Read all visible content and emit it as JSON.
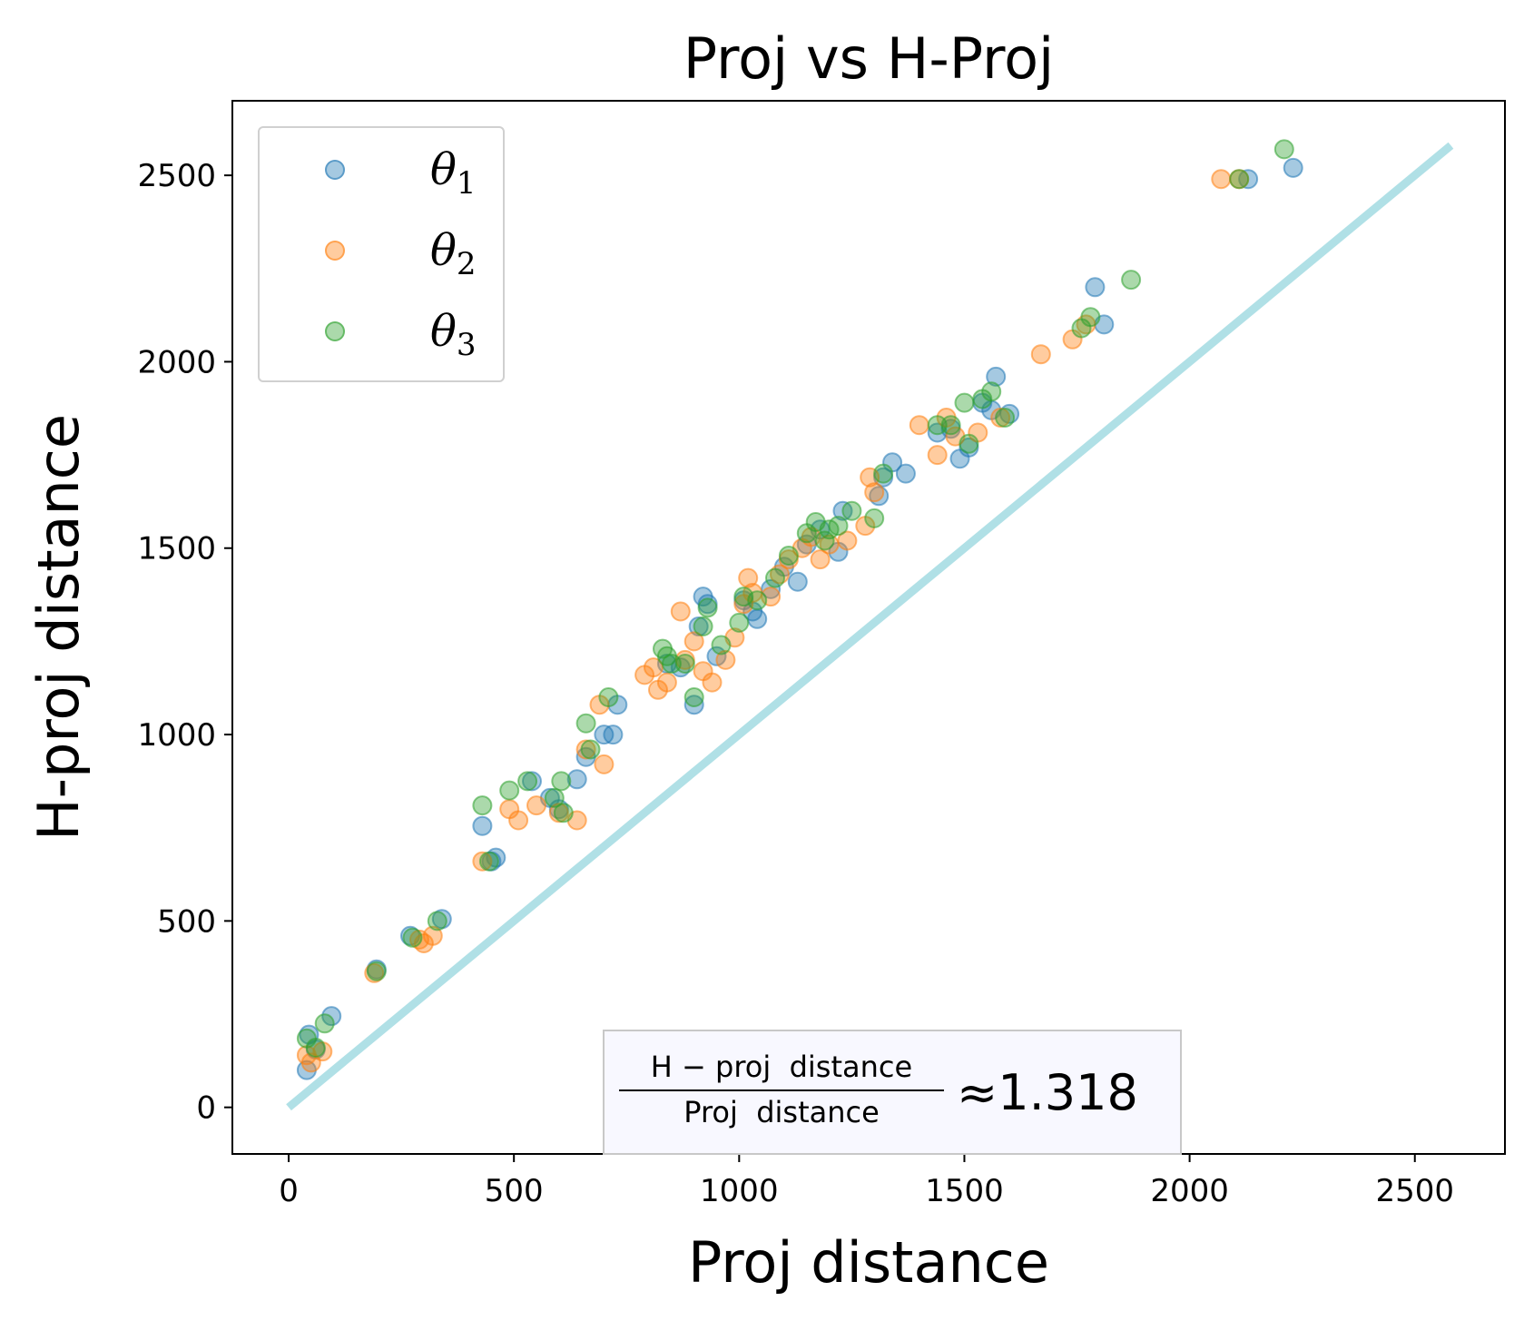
{
  "chart_data": {
    "type": "scatter",
    "title": "Proj vs H-Proj",
    "xlabel": "Proj distance",
    "ylabel": "H-proj distance",
    "xlim": [
      -125,
      2700
    ],
    "ylim": [
      -125,
      2700
    ],
    "x_ticks": [
      0,
      500,
      1000,
      1500,
      2000,
      2500
    ],
    "y_ticks": [
      0,
      500,
      1000,
      1500,
      2000,
      2500
    ],
    "grid": false,
    "legend_position": "upper-left",
    "reference_line": {
      "x": [
        0,
        2580
      ],
      "y": [
        0,
        2580
      ],
      "color": "#b0e0e6"
    },
    "annotation": {
      "numerator": "H − proj  distance",
      "denominator": "Proj  distance",
      "approx": "≈",
      "value": "1.318"
    },
    "series": [
      {
        "name": "θ1",
        "symbol": "θ",
        "subscript": "1",
        "color": "#1f77b4",
        "points": [
          [
            40,
            100
          ],
          [
            45,
            195
          ],
          [
            60,
            155
          ],
          [
            95,
            245
          ],
          [
            195,
            370
          ],
          [
            270,
            460
          ],
          [
            340,
            505
          ],
          [
            430,
            755
          ],
          [
            450,
            660
          ],
          [
            460,
            670
          ],
          [
            540,
            875
          ],
          [
            580,
            830
          ],
          [
            600,
            800
          ],
          [
            640,
            880
          ],
          [
            660,
            940
          ],
          [
            700,
            1000
          ],
          [
            720,
            1000
          ],
          [
            730,
            1080
          ],
          [
            840,
            1190
          ],
          [
            870,
            1180
          ],
          [
            900,
            1080
          ],
          [
            910,
            1290
          ],
          [
            920,
            1370
          ],
          [
            930,
            1350
          ],
          [
            950,
            1210
          ],
          [
            1010,
            1360
          ],
          [
            1030,
            1330
          ],
          [
            1040,
            1310
          ],
          [
            1070,
            1390
          ],
          [
            1100,
            1450
          ],
          [
            1130,
            1410
          ],
          [
            1150,
            1510
          ],
          [
            1180,
            1550
          ],
          [
            1220,
            1490
          ],
          [
            1230,
            1600
          ],
          [
            1310,
            1640
          ],
          [
            1320,
            1690
          ],
          [
            1340,
            1730
          ],
          [
            1370,
            1700
          ],
          [
            1440,
            1810
          ],
          [
            1470,
            1820
          ],
          [
            1490,
            1740
          ],
          [
            1510,
            1770
          ],
          [
            1540,
            1890
          ],
          [
            1560,
            1870
          ],
          [
            1570,
            1960
          ],
          [
            1600,
            1860
          ],
          [
            1790,
            2200
          ],
          [
            1810,
            2100
          ],
          [
            2130,
            2490
          ],
          [
            2230,
            2520
          ]
        ]
      },
      {
        "name": "θ2",
        "symbol": "θ",
        "subscript": "2",
        "color": "#ff7f0e",
        "points": [
          [
            40,
            140
          ],
          [
            50,
            120
          ],
          [
            75,
            150
          ],
          [
            190,
            360
          ],
          [
            290,
            450
          ],
          [
            300,
            440
          ],
          [
            320,
            460
          ],
          [
            430,
            660
          ],
          [
            490,
            800
          ],
          [
            510,
            770
          ],
          [
            550,
            810
          ],
          [
            600,
            790
          ],
          [
            640,
            770
          ],
          [
            660,
            960
          ],
          [
            690,
            1080
          ],
          [
            700,
            920
          ],
          [
            790,
            1160
          ],
          [
            810,
            1180
          ],
          [
            820,
            1120
          ],
          [
            840,
            1140
          ],
          [
            870,
            1330
          ],
          [
            880,
            1200
          ],
          [
            900,
            1250
          ],
          [
            920,
            1170
          ],
          [
            940,
            1140
          ],
          [
            970,
            1200
          ],
          [
            990,
            1260
          ],
          [
            1010,
            1350
          ],
          [
            1020,
            1420
          ],
          [
            1030,
            1380
          ],
          [
            1070,
            1370
          ],
          [
            1090,
            1430
          ],
          [
            1110,
            1470
          ],
          [
            1140,
            1500
          ],
          [
            1160,
            1530
          ],
          [
            1180,
            1470
          ],
          [
            1200,
            1510
          ],
          [
            1240,
            1520
          ],
          [
            1280,
            1560
          ],
          [
            1290,
            1690
          ],
          [
            1300,
            1650
          ],
          [
            1400,
            1830
          ],
          [
            1440,
            1750
          ],
          [
            1460,
            1850
          ],
          [
            1480,
            1800
          ],
          [
            1530,
            1810
          ],
          [
            1580,
            1850
          ],
          [
            1670,
            2020
          ],
          [
            1740,
            2060
          ],
          [
            1770,
            2100
          ],
          [
            2070,
            2490
          ],
          [
            2110,
            2490
          ]
        ]
      },
      {
        "name": "θ3",
        "symbol": "θ",
        "subscript": "3",
        "color": "#2ca02c",
        "points": [
          [
            40,
            185
          ],
          [
            60,
            160
          ],
          [
            80,
            225
          ],
          [
            195,
            365
          ],
          [
            275,
            455
          ],
          [
            330,
            500
          ],
          [
            430,
            810
          ],
          [
            445,
            660
          ],
          [
            490,
            850
          ],
          [
            530,
            875
          ],
          [
            590,
            830
          ],
          [
            605,
            875
          ],
          [
            610,
            790
          ],
          [
            660,
            1030
          ],
          [
            670,
            960
          ],
          [
            710,
            1100
          ],
          [
            830,
            1230
          ],
          [
            840,
            1210
          ],
          [
            850,
            1190
          ],
          [
            880,
            1190
          ],
          [
            900,
            1100
          ],
          [
            920,
            1290
          ],
          [
            930,
            1340
          ],
          [
            960,
            1240
          ],
          [
            1000,
            1300
          ],
          [
            1010,
            1370
          ],
          [
            1040,
            1360
          ],
          [
            1080,
            1420
          ],
          [
            1110,
            1480
          ],
          [
            1150,
            1540
          ],
          [
            1170,
            1570
          ],
          [
            1190,
            1520
          ],
          [
            1200,
            1550
          ],
          [
            1220,
            1560
          ],
          [
            1250,
            1600
          ],
          [
            1300,
            1580
          ],
          [
            1320,
            1700
          ],
          [
            1440,
            1830
          ],
          [
            1470,
            1830
          ],
          [
            1500,
            1890
          ],
          [
            1510,
            1780
          ],
          [
            1540,
            1900
          ],
          [
            1560,
            1920
          ],
          [
            1590,
            1850
          ],
          [
            1760,
            2090
          ],
          [
            1780,
            2120
          ],
          [
            1870,
            2220
          ],
          [
            2110,
            2490
          ],
          [
            2210,
            2570
          ]
        ]
      }
    ]
  }
}
